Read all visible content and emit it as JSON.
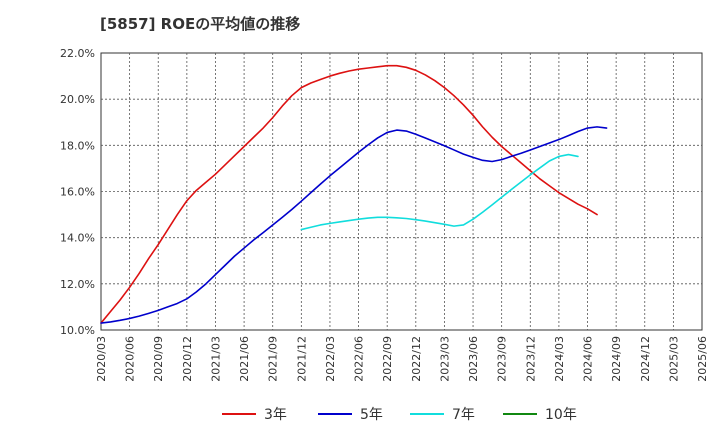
{
  "chart_data": {
    "type": "line",
    "title": "[5857]  ROEの平均値の推移",
    "xlabel": "",
    "ylabel": "",
    "ylim": [
      10.0,
      22.0
    ],
    "y_ticks": [
      "10.0%",
      "12.0%",
      "14.0%",
      "16.0%",
      "18.0%",
      "20.0%",
      "22.0%"
    ],
    "y_tick_values": [
      10,
      12,
      14,
      16,
      18,
      20,
      22
    ],
    "x_ticks": [
      "2020/03",
      "2020/06",
      "2020/09",
      "2020/12",
      "2021/03",
      "2021/06",
      "2021/09",
      "2021/12",
      "2022/03",
      "2022/06",
      "2022/09",
      "2022/12",
      "2023/03",
      "2023/06",
      "2023/09",
      "2023/12",
      "2024/03",
      "2024/06",
      "2024/09",
      "2024/12",
      "2025/03",
      "2025/06"
    ],
    "grid": true,
    "legend_position": "bottom",
    "series": [
      {
        "name": "3年",
        "color": "#dd1111",
        "start_index": 0,
        "values": [
          10.3,
          10.8,
          11.3,
          11.85,
          12.45,
          13.1,
          13.7,
          14.35,
          15.0,
          15.6,
          16.05,
          16.4,
          16.75,
          17.15,
          17.55,
          17.95,
          18.35,
          18.75,
          19.2,
          19.7,
          20.15,
          20.5,
          20.7,
          20.85,
          21.0,
          21.12,
          21.22,
          21.3,
          21.35,
          21.4,
          21.45,
          21.45,
          21.38,
          21.25,
          21.05,
          20.8,
          20.5,
          20.15,
          19.75,
          19.3,
          18.8,
          18.35,
          17.95,
          17.6,
          17.25,
          16.9,
          16.55,
          16.25,
          15.95,
          15.7,
          15.45,
          15.25,
          15.0
        ]
      },
      {
        "name": "5年",
        "color": "#0000cc",
        "start_index": 0,
        "values": [
          10.3,
          10.35,
          10.42,
          10.5,
          10.6,
          10.72,
          10.85,
          11.0,
          11.15,
          11.35,
          11.65,
          12.0,
          12.4,
          12.8,
          13.2,
          13.55,
          13.9,
          14.22,
          14.55,
          14.88,
          15.22,
          15.58,
          15.95,
          16.32,
          16.68,
          17.02,
          17.36,
          17.7,
          18.02,
          18.32,
          18.56,
          18.66,
          18.62,
          18.48,
          18.32,
          18.15,
          17.98,
          17.8,
          17.62,
          17.48,
          17.35,
          17.3,
          17.38,
          17.52,
          17.65,
          17.8,
          17.95,
          18.1,
          18.25,
          18.42,
          18.6,
          18.75,
          18.8,
          18.75
        ]
      },
      {
        "name": "7年",
        "color": "#11dddd",
        "start_index": 21,
        "values": [
          14.35,
          14.45,
          14.55,
          14.62,
          14.68,
          14.74,
          14.8,
          14.85,
          14.88,
          14.88,
          14.86,
          14.83,
          14.78,
          14.72,
          14.65,
          14.58,
          14.5,
          14.55,
          14.8,
          15.1,
          15.42,
          15.75,
          16.08,
          16.4,
          16.72,
          17.02,
          17.32,
          17.52,
          17.6,
          17.52
        ]
      },
      {
        "name": "10年",
        "color": "#118811",
        "start_index": 0,
        "values": []
      }
    ]
  }
}
